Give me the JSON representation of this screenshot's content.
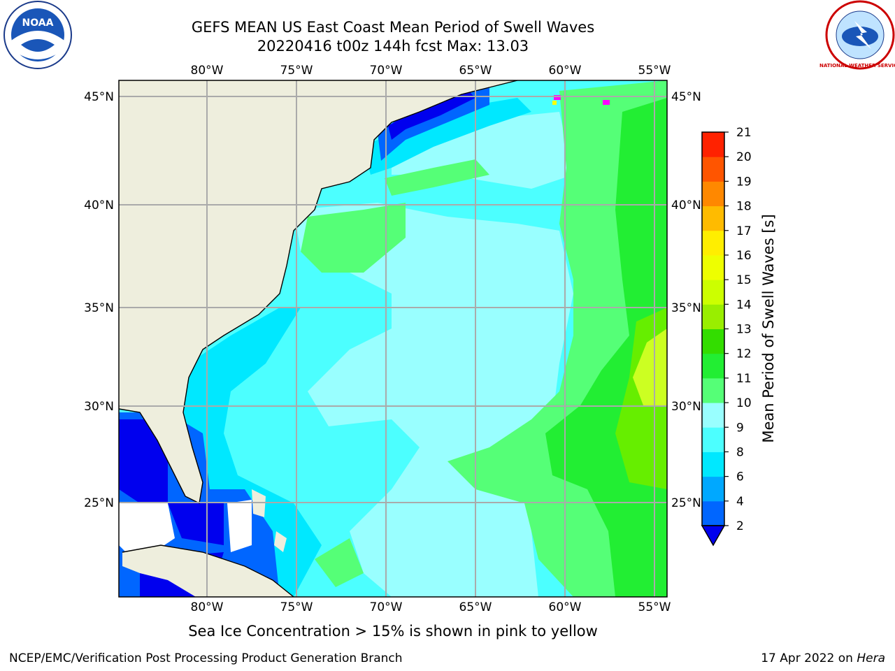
{
  "title_line1": "GEFS MEAN US East Coast Mean Period of Swell Waves",
  "title_line2": "20220416 t00z 144h fcst   Max: 13.03",
  "map": {
    "lon_ticks": [
      "80°W",
      "75°W",
      "70°W",
      "65°W",
      "60°W",
      "55°W"
    ],
    "lat_ticks": [
      "45°N",
      "40°N",
      "35°N",
      "30°N",
      "25°N"
    ]
  },
  "colorbar": {
    "label": "Mean Period of Swell Waves [s]",
    "ticks": [
      "2",
      "4",
      "6",
      "8",
      "9",
      "10",
      "11",
      "12",
      "13",
      "14",
      "15",
      "16",
      "17",
      "18",
      "19",
      "20",
      "21"
    ],
    "colors": [
      "#0066ff",
      "#00a8ff",
      "#00e8ff",
      "#4cffff",
      "#99ffff",
      "#55ff77",
      "#22ee33",
      "#33dd00",
      "#99ee00",
      "#ccff00",
      "#eeff00",
      "#ffee00",
      "#ffbb00",
      "#ff8800",
      "#ff5500",
      "#ff2200",
      "#ff0000"
    ],
    "below_color": "#0000ee"
  },
  "field_colors": {
    "land": "#eeeedd",
    "lt2": "#0000ee",
    "p2_4": "#0066ff",
    "p4_6": "#00e8ff",
    "p6_8": "#4cffff",
    "p8_9": "#99ffff",
    "p9_10": "#55ff77",
    "p10_11": "#22ee33",
    "p11_12": "#66ee00",
    "p12_13": "#ccff22",
    "ice": "#ff00ff",
    "no_data": "#ffffff"
  },
  "note": "Sea Ice Concentration > 15% is shown in pink to yellow",
  "footer_left": "NCEP/EMC/Verification Post Processing Product Generation Branch",
  "footer_right_prefix": "17 Apr 2022 on",
  "footer_right_machine": "Hera",
  "logos": {
    "left": "NOAA",
    "right": "NATIONAL WEATHER SERVICE"
  }
}
